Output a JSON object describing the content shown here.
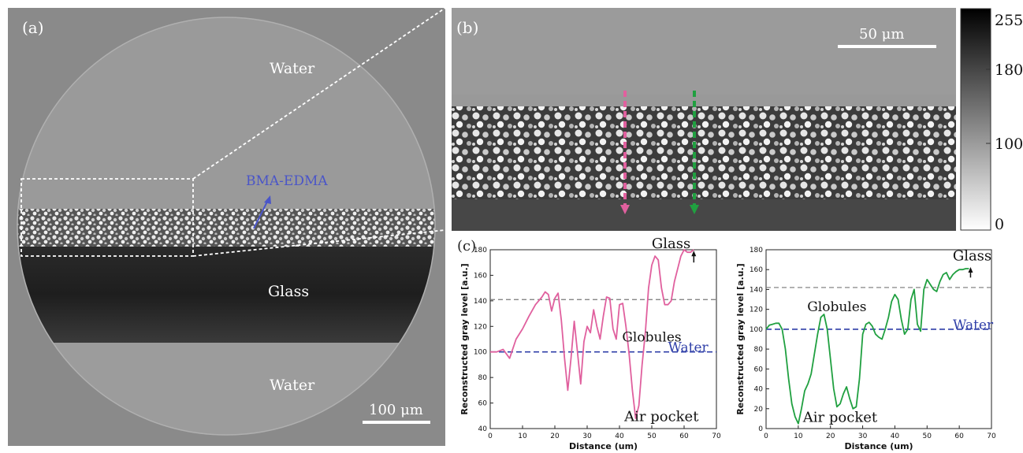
{
  "panel_a": {
    "label": "(a)",
    "regions": {
      "water_top": "Water",
      "glass": "Glass",
      "water_bottom": "Water"
    },
    "arrow_label": "BMA-EDMA",
    "scale_bar": "100 μm"
  },
  "panel_b": {
    "label": "(b)",
    "scale_bar": "50 μm",
    "colorbar_ticks": [
      "255",
      "180",
      "100",
      "0"
    ],
    "colors": {
      "profile_left": "#e0609e",
      "profile_right": "#20a040"
    }
  },
  "panel_c": {
    "label": "(c)"
  },
  "chart_data": [
    {
      "type": "line",
      "xlabel": "Distance (um)",
      "ylabel": "Reconstructed gray level [a.u.]",
      "xlim": [
        0,
        70
      ],
      "ylim": [
        40,
        180
      ],
      "xticks": [
        "0",
        "10",
        "20",
        "30",
        "40",
        "50",
        "60",
        "70"
      ],
      "yticks": [
        "40",
        "60",
        "80",
        "100",
        "120",
        "140",
        "160",
        "180"
      ],
      "annotations": {
        "glass": "Glass",
        "globules": "Globules",
        "water": "Water",
        "air": "Air pocket"
      },
      "water_level": 100,
      "glass_level": 141,
      "series": [
        {
          "color": "#e0609e",
          "x": [
            0,
            2,
            4,
            6,
            8,
            10,
            12,
            14,
            16,
            17,
            18,
            19,
            20,
            21,
            22,
            23,
            24,
            25,
            26,
            27,
            28,
            29,
            30,
            31,
            32,
            33,
            34,
            35,
            36,
            37,
            38,
            39,
            40,
            41,
            42,
            43,
            44,
            45,
            46,
            47,
            48,
            49,
            50,
            51,
            52,
            53,
            54,
            55,
            56,
            57,
            58,
            59,
            60,
            61,
            62,
            63
          ],
          "y": [
            100,
            100,
            102,
            95,
            110,
            118,
            128,
            137,
            143,
            147,
            145,
            132,
            142,
            146,
            125,
            95,
            70,
            95,
            124,
            100,
            75,
            108,
            120,
            115,
            133,
            120,
            110,
            128,
            143,
            142,
            118,
            110,
            137,
            138,
            120,
            98,
            70,
            48,
            58,
            90,
            115,
            150,
            168,
            175,
            172,
            150,
            137,
            137,
            140,
            155,
            165,
            175,
            180,
            178,
            178,
            180
          ]
        }
      ]
    },
    {
      "type": "line",
      "xlabel": "Distance (um)",
      "ylabel": "Reconstructed gray level [a.u.]",
      "xlim": [
        0,
        70
      ],
      "ylim": [
        0,
        180
      ],
      "xticks": [
        "0",
        "10",
        "20",
        "30",
        "40",
        "50",
        "60",
        "70"
      ],
      "yticks": [
        "0",
        "20",
        "40",
        "60",
        "80",
        "100",
        "120",
        "140",
        "160",
        "180"
      ],
      "annotations": {
        "glass": "Glass",
        "globules": "Globules",
        "water": "Water",
        "air": "Air pocket"
      },
      "water_level": 100,
      "glass_level": 142,
      "series": [
        {
          "color": "#20a040",
          "x": [
            0,
            1,
            2,
            3,
            4,
            5,
            6,
            7,
            8,
            9,
            10,
            11,
            12,
            13,
            14,
            15,
            16,
            17,
            18,
            19,
            20,
            21,
            22,
            23,
            24,
            25,
            26,
            27,
            28,
            29,
            30,
            31,
            32,
            33,
            34,
            35,
            36,
            37,
            38,
            39,
            40,
            41,
            42,
            43,
            44,
            45,
            46,
            47,
            48,
            49,
            50,
            51,
            52,
            53,
            54,
            55,
            56,
            57,
            58,
            59,
            60,
            61,
            62,
            63
          ],
          "y": [
            100,
            104,
            105,
            106,
            106,
            100,
            80,
            50,
            25,
            12,
            5,
            20,
            38,
            45,
            55,
            75,
            95,
            112,
            115,
            100,
            70,
            40,
            22,
            25,
            35,
            42,
            30,
            20,
            22,
            50,
            95,
            105,
            107,
            103,
            95,
            92,
            90,
            100,
            112,
            128,
            135,
            130,
            110,
            95,
            100,
            130,
            140,
            105,
            98,
            140,
            150,
            145,
            140,
            138,
            148,
            155,
            157,
            150,
            155,
            158,
            160,
            160,
            161,
            161
          ]
        }
      ]
    }
  ]
}
